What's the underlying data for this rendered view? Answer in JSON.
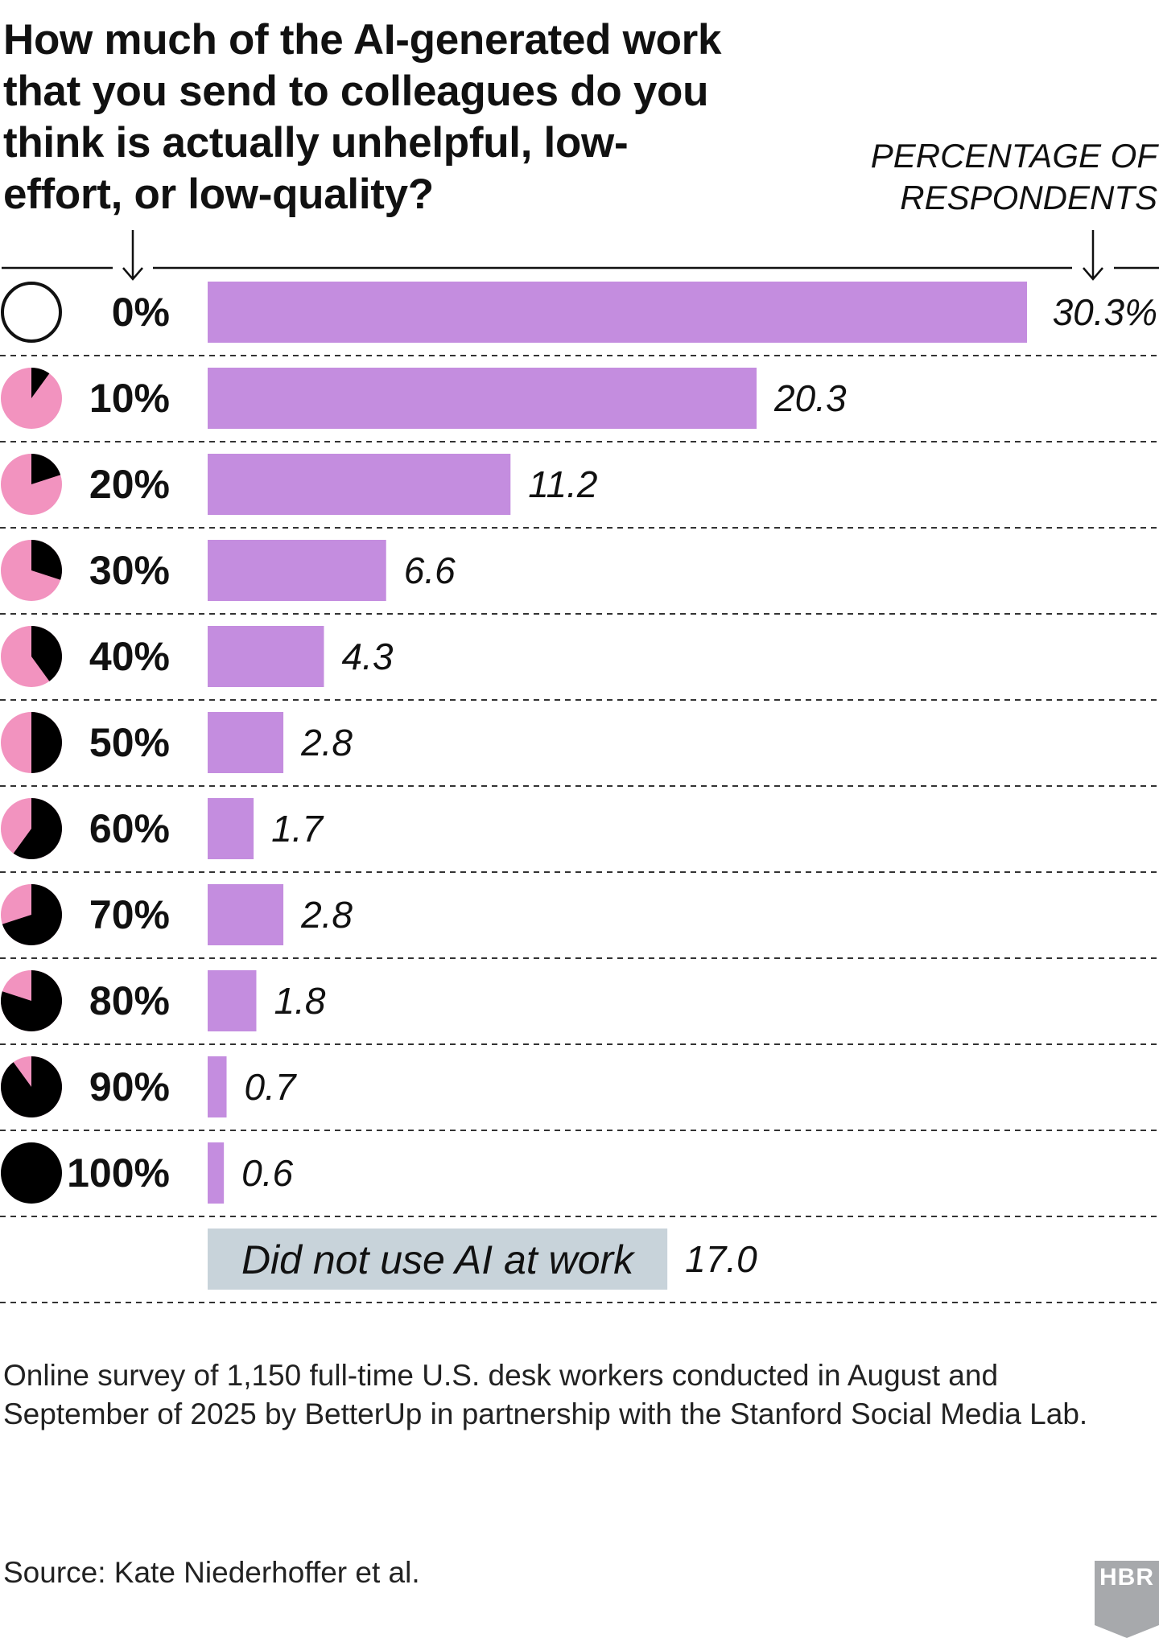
{
  "chart_data": {
    "type": "bar",
    "orientation": "horizontal",
    "title": "How much of the AI-generated work that you send to colleagues do you think is actually unhelpful, low-effort, or low-quality?",
    "value_label": "PERCENTAGE OF RESPONDENTS",
    "categories": [
      "0%",
      "10%",
      "20%",
      "30%",
      "40%",
      "50%",
      "60%",
      "70%",
      "80%",
      "90%",
      "100%",
      "Did not use AI at work"
    ],
    "pie_fractions": [
      0,
      0.1,
      0.2,
      0.3,
      0.4,
      0.5,
      0.6,
      0.7,
      0.8,
      0.9,
      1.0,
      null
    ],
    "values": [
      30.3,
      20.3,
      11.2,
      6.6,
      4.3,
      2.8,
      1.7,
      2.8,
      1.8,
      0.7,
      0.6,
      17.0
    ],
    "value_labels": [
      "30.3%",
      "20.3",
      "11.2",
      "6.6",
      "4.3",
      "2.8",
      "1.7",
      "2.8",
      "1.8",
      "0.7",
      "0.6",
      "17.0"
    ],
    "xlim": [
      0,
      30.3
    ],
    "grid": "dashed row separators",
    "colors": {
      "bar": "#c48ddf",
      "other_bar": "#c8d3da",
      "pie_base": "#f293bf",
      "pie_fill": "#000000"
    }
  },
  "note": "Online survey of 1,150 full-time U.S. desk workers conducted in August and September of 2025 by BetterUp in partnership with the Stanford Social Media Lab.",
  "source": "Source: Kate Niederhoffer et al.",
  "logo": "HBR"
}
